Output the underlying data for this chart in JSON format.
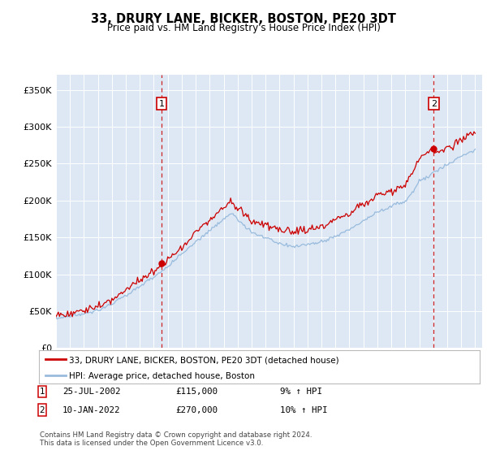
{
  "title": "33, DRURY LANE, BICKER, BOSTON, PE20 3DT",
  "subtitle": "Price paid vs. HM Land Registry's House Price Index (HPI)",
  "ylabel_ticks": [
    "£0",
    "£50K",
    "£100K",
    "£150K",
    "£200K",
    "£250K",
    "£300K",
    "£350K"
  ],
  "ylim": [
    0,
    370000
  ],
  "yticks": [
    0,
    50000,
    100000,
    150000,
    200000,
    250000,
    300000,
    350000
  ],
  "marker1": {
    "year": 2002.56,
    "value": 115000,
    "label": "1",
    "date": "25-JUL-2002",
    "price": "£115,000",
    "note": "9% ↑ HPI"
  },
  "marker2": {
    "year": 2022.03,
    "value": 270000,
    "label": "2",
    "date": "10-JAN-2022",
    "price": "£270,000",
    "note": "10% ↑ HPI"
  },
  "legend_line1": "33, DRURY LANE, BICKER, BOSTON, PE20 3DT (detached house)",
  "legend_line2": "HPI: Average price, detached house, Boston",
  "footer": "Contains HM Land Registry data © Crown copyright and database right 2024.\nThis data is licensed under the Open Government Licence v3.0.",
  "line_color_property": "#cc0000",
  "line_color_hpi": "#99bbdd",
  "bg_color": "#dde8f4",
  "grid_color": "#ffffff",
  "box_color": "#cc0000"
}
